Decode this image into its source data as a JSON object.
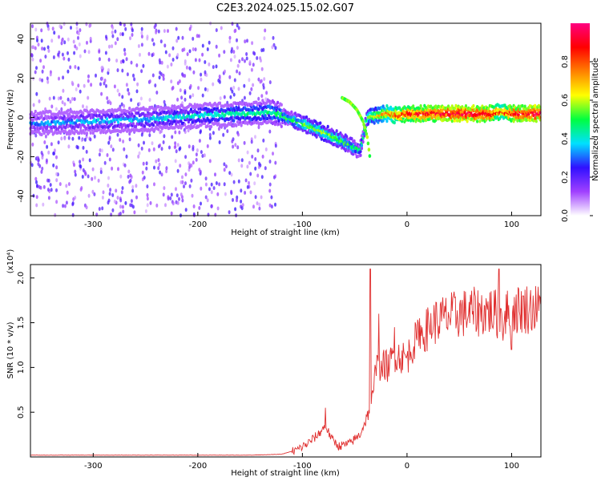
{
  "title": "C2E3.2024.025.15.02.G07",
  "chart_data": [
    {
      "type": "heatmap",
      "panel": "top",
      "xlabel": "Height of straight line (km)",
      "ylabel": "Frequency (Hz)",
      "xlim": [
        -360,
        128
      ],
      "ylim": [
        -50,
        48
      ],
      "xticks": [
        -300,
        -200,
        -100,
        0,
        100
      ],
      "yticks": [
        -40,
        -20,
        0,
        20,
        40
      ],
      "colorbar": {
        "label": "Normalized spectral amplitude",
        "ticks": [
          "0.0",
          "0.2",
          "0.4",
          "0.6",
          "0.8"
        ],
        "tick_values": [
          0.0,
          0.2,
          0.4,
          0.6,
          0.8
        ],
        "range": [
          0,
          1
        ],
        "colormap": [
          "#ffffff",
          "#a040ff",
          "#3010ff",
          "#00e0ff",
          "#00ff40",
          "#ffff00",
          "#ff8000",
          "#ff0000",
          "#ff0080"
        ]
      },
      "ridge": {
        "x": [
          -360,
          -300,
          -250,
          -200,
          -150,
          -130,
          -110,
          -90,
          -70,
          -55,
          -45,
          -38,
          -30,
          -20,
          -10,
          0,
          20,
          50,
          80,
          90,
          100,
          128
        ],
        "freq": [
          -3,
          -2,
          -1,
          1,
          2,
          3,
          -1,
          -5,
          -10,
          -14,
          -17,
          0,
          1,
          2,
          1,
          2,
          2,
          2,
          2,
          3,
          2,
          2
        ],
        "amplitude": [
          0.3,
          0.35,
          0.35,
          0.4,
          0.45,
          0.45,
          0.5,
          0.55,
          0.55,
          0.5,
          0.45,
          0.55,
          0.65,
          0.75,
          0.8,
          0.85,
          0.9,
          0.95,
          0.9,
          0.8,
          0.9,
          0.95
        ]
      },
      "secondary_branch": {
        "x": [
          -62,
          -55,
          -48,
          -42,
          -38,
          -35
        ],
        "freq": [
          10,
          8,
          4,
          -2,
          -10,
          -22
        ]
      },
      "noise_extent_x": [
        -360,
        -125
      ]
    },
    {
      "type": "line",
      "panel": "bottom",
      "xlabel": "Height of straight line (km)",
      "ylabel": "SNR (10 * v/v)",
      "y_multiplier": "(x10⁴)",
      "xlim": [
        -360,
        128
      ],
      "ylim": [
        0,
        2.15
      ],
      "xticks": [
        -300,
        -200,
        -100,
        0,
        100
      ],
      "yticks": [
        0.5,
        1.0,
        1.5,
        2.0
      ],
      "ytick_labels": [
        "0.5",
        "1.0",
        "1.5",
        "2.0"
      ],
      "color": "#e03030",
      "series": [
        {
          "x": [
            -360,
            -300,
            -250,
            -200,
            -150,
            -120,
            -105,
            -95,
            -85,
            -78,
            -72,
            -65,
            -55,
            -45,
            -38,
            -32,
            -28,
            -25,
            -22,
            -18,
            -12,
            -5,
            0,
            5,
            15,
            25,
            35,
            50,
            65,
            80,
            88,
            92,
            96,
            100,
            110,
            120,
            128
          ],
          "y": [
            0.02,
            0.02,
            0.02,
            0.02,
            0.02,
            0.03,
            0.08,
            0.15,
            0.25,
            0.35,
            0.2,
            0.12,
            0.15,
            0.25,
            0.45,
            0.7,
            1.3,
            0.9,
            1.05,
            1.0,
            1.15,
            1.12,
            1.1,
            1.25,
            1.38,
            1.5,
            1.55,
            1.6,
            1.62,
            1.63,
            1.58,
            1.65,
            1.6,
            1.64,
            1.66,
            1.66,
            1.65
          ]
        }
      ],
      "spikes": [
        {
          "x": -78,
          "y": 0.55
        },
        {
          "x": -35,
          "y": 2.1
        },
        {
          "x": -27,
          "y": 1.6
        },
        {
          "x": -12,
          "y": 1.45
        },
        {
          "x": 12,
          "y": 1.55
        },
        {
          "x": 88,
          "y": 2.1
        },
        {
          "x": 92,
          "y": 1.3
        },
        {
          "x": 100,
          "y": 1.2
        }
      ]
    }
  ]
}
